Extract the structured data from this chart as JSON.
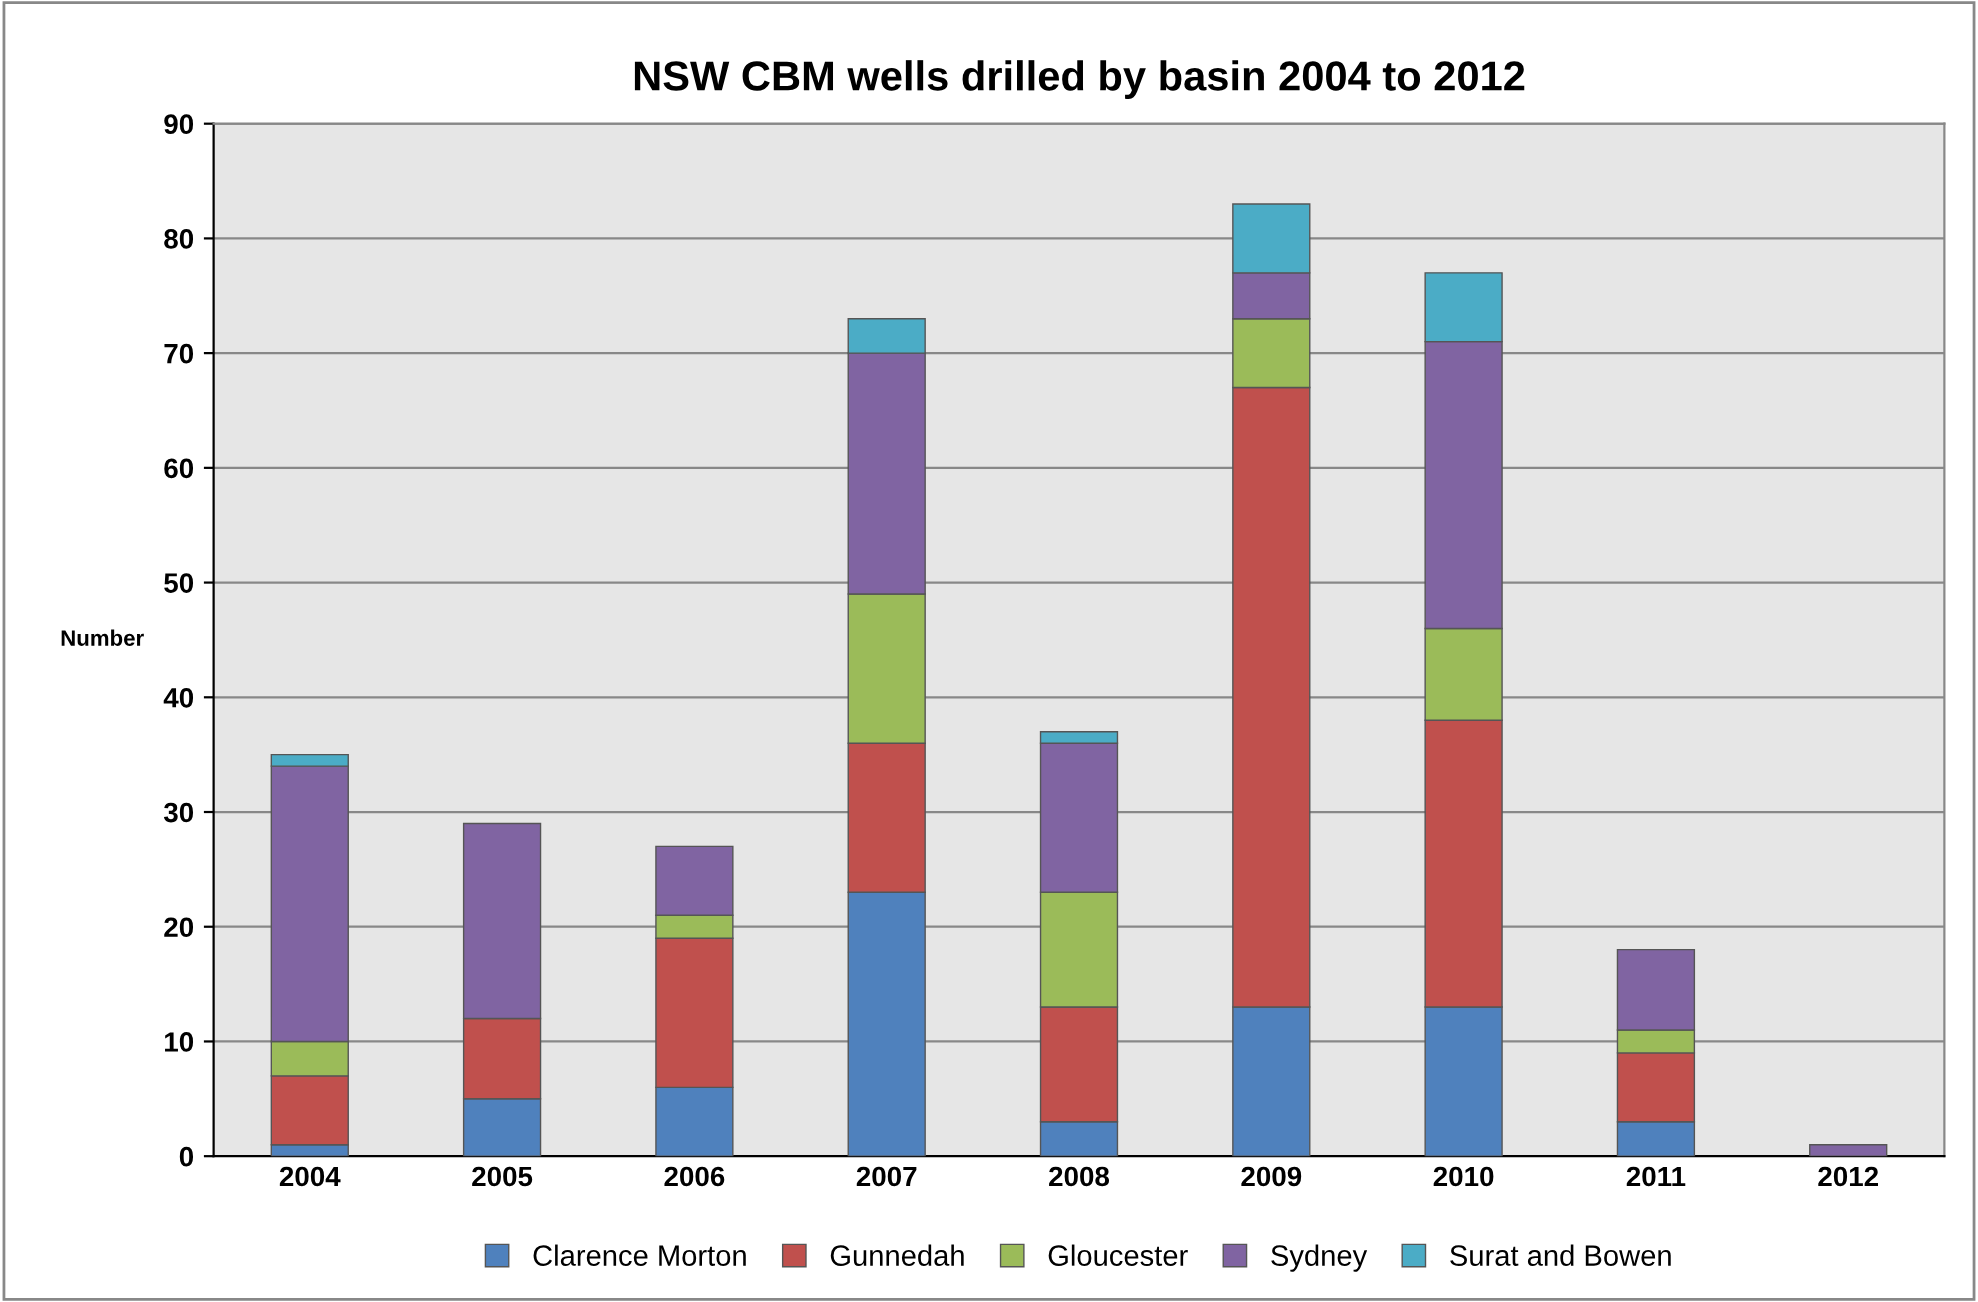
{
  "chart_data": {
    "type": "bar",
    "title": "NSW CBM wells drilled by basin 2004 to 2012",
    "ylabel": "Number",
    "categories": [
      "2004",
      "2005",
      "2006",
      "2007",
      "2008",
      "2009",
      "2010",
      "2011",
      "2012"
    ],
    "stacked": true,
    "ylim": [
      0,
      90
    ],
    "yticks": [
      0,
      10,
      20,
      30,
      40,
      50,
      60,
      70,
      80,
      90
    ],
    "grid": "y",
    "legend": "bottom",
    "series": [
      {
        "name": "Clarence Morton",
        "color": "#4f81bd",
        "values": [
          1,
          5,
          6,
          23,
          3,
          13,
          13,
          3,
          0
        ]
      },
      {
        "name": "Gunnedah",
        "color": "#c0504d",
        "values": [
          6,
          7,
          13,
          13,
          10,
          54,
          25,
          6,
          0
        ]
      },
      {
        "name": "Gloucester",
        "color": "#9bbb59",
        "values": [
          3,
          0,
          2,
          13,
          10,
          6,
          8,
          2,
          0
        ]
      },
      {
        "name": "Sydney",
        "color": "#8064a2",
        "values": [
          24,
          17,
          6,
          21,
          13,
          4,
          25,
          7,
          1
        ]
      },
      {
        "name": "Surat and Bowen",
        "color": "#4bacc6",
        "values": [
          1,
          0,
          0,
          3,
          1,
          6,
          6,
          0,
          0
        ]
      }
    ]
  }
}
